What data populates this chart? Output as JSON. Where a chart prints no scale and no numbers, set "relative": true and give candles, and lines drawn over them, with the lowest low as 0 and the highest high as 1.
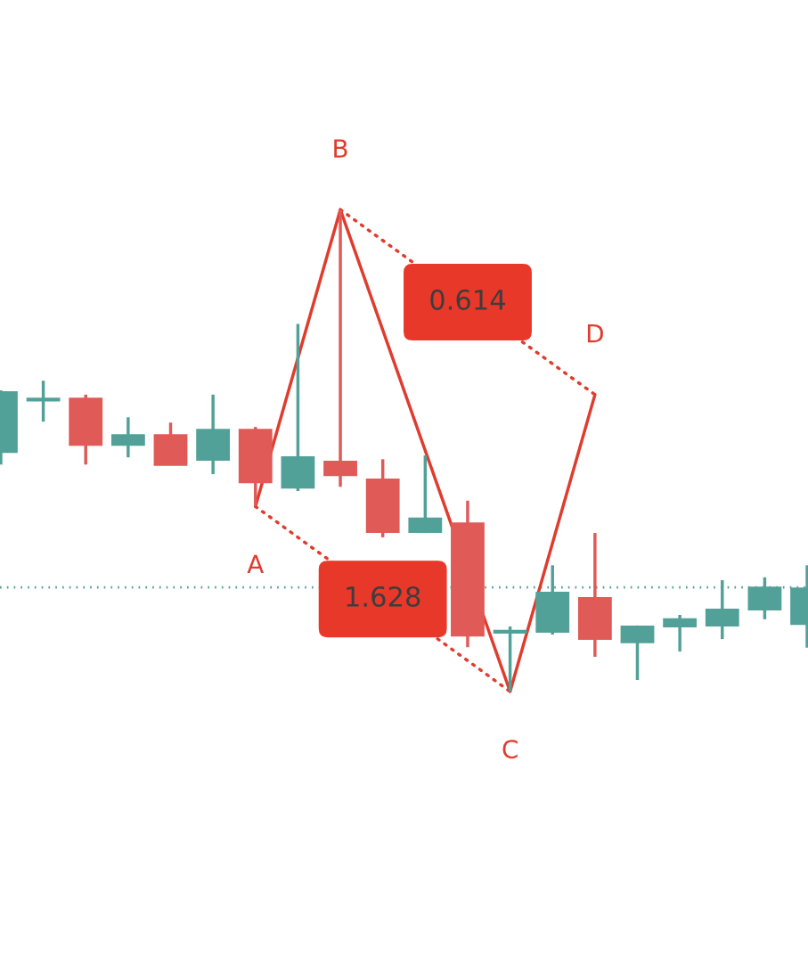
{
  "chart_data": {
    "type": "candlestick",
    "relative": true,
    "grid": false,
    "legend": false,
    "categories": [
      null,
      null,
      null,
      null,
      null,
      null,
      null,
      null,
      null,
      null,
      null,
      null,
      null,
      null,
      null,
      null,
      null,
      null,
      null,
      null
    ],
    "ohlc": [
      [
        0.497,
        0.625,
        0.471,
        0.621
      ],
      [
        0.604,
        0.645,
        0.56,
        0.608
      ],
      [
        0.608,
        0.616,
        0.471,
        0.512
      ],
      [
        0.512,
        0.569,
        0.486,
        0.532
      ],
      [
        0.532,
        0.558,
        0.47,
        0.47
      ],
      [
        0.481,
        0.616,
        0.451,
        0.543
      ],
      [
        0.543,
        0.549,
        0.384,
        0.434
      ],
      [
        0.423,
        0.763,
        0.416,
        0.486
      ],
      [
        0.477,
        1.0,
        0.425,
        0.449
      ],
      [
        0.44,
        0.482,
        0.32,
        0.331
      ],
      [
        0.331,
        0.49,
        0.329,
        0.359
      ],
      [
        0.349,
        0.396,
        0.092,
        0.116
      ],
      [
        0.122,
        0.135,
        0.0,
        0.126
      ],
      [
        0.124,
        0.262,
        0.118,
        0.205
      ],
      [
        0.194,
        0.329,
        0.072,
        0.109
      ],
      [
        0.102,
        0.137,
        0.024,
        0.135
      ],
      [
        0.135,
        0.159,
        0.083,
        0.15
      ],
      [
        0.137,
        0.231,
        0.109,
        0.17
      ],
      [
        0.17,
        0.237,
        0.15,
        0.216
      ],
      [
        0.14,
        0.262,
        0.091,
        0.214
      ]
    ],
    "colors": [
      "#52a199",
      "#52a199",
      "#e05a57",
      "#52a199",
      "#e05a57",
      "#52a199",
      "#e05a57",
      "#52a199",
      "#e05a57",
      "#e05a57",
      "#52a199",
      "#e05a57",
      "#52a199",
      "#52a199",
      "#e05a57",
      "#52a199",
      "#52a199",
      "#52a199",
      "#52a199",
      "#52a199"
    ],
    "series": [
      {
        "type": "line",
        "color": "#e03c2e",
        "line_style": "solid",
        "values": [
          null,
          null,
          null,
          null,
          null,
          null,
          0.384,
          null,
          1.0,
          null,
          null,
          null,
          0.0,
          null,
          0.616,
          null,
          null,
          null,
          null,
          null
        ]
      },
      {
        "type": "line",
        "color": "#e03c2e",
        "line_style": "dotted",
        "values": [
          null,
          null,
          null,
          null,
          null,
          null,
          0.384,
          null,
          null,
          null,
          null,
          null,
          0.0,
          null,
          null,
          null,
          null,
          null,
          null,
          null
        ]
      },
      {
        "type": "line",
        "color": "#e03c2e",
        "line_style": "dotted",
        "values": [
          null,
          null,
          null,
          null,
          null,
          null,
          null,
          null,
          1.0,
          null,
          null,
          null,
          null,
          null,
          0.616,
          null,
          null,
          null,
          null,
          null
        ]
      }
    ],
    "ref_lines": [
      {
        "axis": "y",
        "value": 0.216,
        "color": "#52a199",
        "line_style": "dotted"
      }
    ],
    "annotations": [
      "A",
      "B",
      "C",
      "D",
      "1.628",
      "0.614"
    ]
  }
}
